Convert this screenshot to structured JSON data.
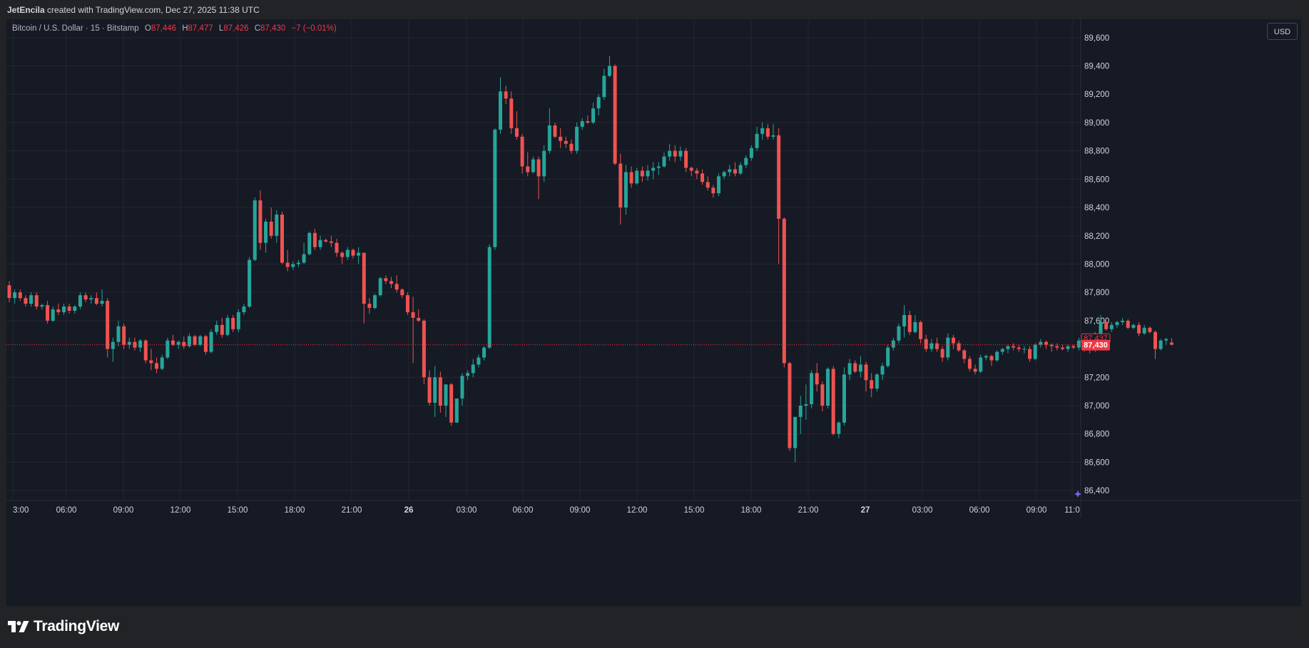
{
  "header": {
    "author": "JetEncila",
    "credit_rest": "created with TradingView.com, Dec 27, 2025 11:38 UTC"
  },
  "legend": {
    "symbol": "Bitcoin / U.S. Dollar · 15 · Bitstamp",
    "open_label": "O",
    "open": "87,446",
    "high_label": "H",
    "high": "87,477",
    "low_label": "L",
    "low": "87,426",
    "close_label": "C",
    "close": "87,430",
    "change": "−7 (−0.01%)"
  },
  "currency_button": "USD",
  "footer": {
    "brand": "TradingView",
    "logo_icon": "tradingview-logo-icon"
  },
  "colors": {
    "up": "#26a69a",
    "down": "#ef5350",
    "background": "#161a25",
    "grid": "#242733",
    "last_price_label": "#f23645"
  },
  "chart_data": {
    "type": "candlestick",
    "symbol": "BTCUSD",
    "interval": "15",
    "x_tick_labels": [
      "3:00",
      "06:00",
      "09:00",
      "12:00",
      "15:00",
      "18:00",
      "21:00",
      "26",
      "03:00",
      "06:00",
      "09:00",
      "12:00",
      "15:00",
      "18:00",
      "21:00",
      "27",
      "03:00",
      "06:00",
      "09:00",
      "11:0"
    ],
    "y_tick_labels": [
      "89,600",
      "89,400",
      "89,200",
      "89,000",
      "88,800",
      "88,600",
      "88,400",
      "88,200",
      "88,000",
      "87,800",
      "87,600",
      "87,200",
      "87,000",
      "86,800",
      "86,600",
      "86,400"
    ],
    "ylim": [
      86330,
      89730
    ],
    "price_labels": [
      "87,437",
      "87,430"
    ],
    "last_price": 87430,
    "grid": true,
    "candles": [
      [
        87850,
        87880,
        87730,
        87760
      ],
      [
        87760,
        87820,
        87720,
        87800
      ],
      [
        87800,
        87820,
        87740,
        87760
      ],
      [
        87760,
        87780,
        87700,
        87720
      ],
      [
        87720,
        87800,
        87700,
        87780
      ],
      [
        87780,
        87800,
        87680,
        87700
      ],
      [
        87700,
        87720,
        87680,
        87710
      ],
      [
        87710,
        87740,
        87580,
        87600
      ],
      [
        87600,
        87700,
        87590,
        87680
      ],
      [
        87680,
        87720,
        87640,
        87660
      ],
      [
        87660,
        87720,
        87640,
        87700
      ],
      [
        87700,
        87720,
        87650,
        87670
      ],
      [
        87670,
        87710,
        87650,
        87700
      ],
      [
        87700,
        87800,
        87680,
        87780
      ],
      [
        87780,
        87800,
        87730,
        87750
      ],
      [
        87750,
        87780,
        87720,
        87760
      ],
      [
        87760,
        87800,
        87710,
        87720
      ],
      [
        87720,
        87820,
        87700,
        87740
      ],
      [
        87740,
        87760,
        87340,
        87400
      ],
      [
        87400,
        87480,
        87310,
        87450
      ],
      [
        87450,
        87600,
        87420,
        87560
      ],
      [
        87560,
        87580,
        87400,
        87430
      ],
      [
        87430,
        87480,
        87400,
        87450
      ],
      [
        87450,
        87480,
        87390,
        87410
      ],
      [
        87410,
        87470,
        87380,
        87460
      ],
      [
        87460,
        87470,
        87300,
        87320
      ],
      [
        87320,
        87400,
        87250,
        87300
      ],
      [
        87300,
        87340,
        87230,
        87260
      ],
      [
        87260,
        87360,
        87250,
        87340
      ],
      [
        87340,
        87480,
        87330,
        87460
      ],
      [
        87460,
        87500,
        87420,
        87430
      ],
      [
        87430,
        87460,
        87400,
        87450
      ],
      [
        87450,
        87490,
        87400,
        87420
      ],
      [
        87420,
        87510,
        87410,
        87490
      ],
      [
        87490,
        87500,
        87420,
        87430
      ],
      [
        87430,
        87500,
        87420,
        87490
      ],
      [
        87490,
        87500,
        87360,
        87380
      ],
      [
        87380,
        87540,
        87370,
        87520
      ],
      [
        87520,
        87600,
        87500,
        87570
      ],
      [
        87570,
        87620,
        87480,
        87500
      ],
      [
        87500,
        87640,
        87490,
        87620
      ],
      [
        87620,
        87640,
        87520,
        87540
      ],
      [
        87540,
        87680,
        87520,
        87660
      ],
      [
        87660,
        87720,
        87640,
        87700
      ],
      [
        87700,
        88050,
        87690,
        88030
      ],
      [
        88030,
        88470,
        88020,
        88450
      ],
      [
        88450,
        88520,
        88100,
        88150
      ],
      [
        88150,
        88320,
        88080,
        88300
      ],
      [
        88300,
        88400,
        88180,
        88200
      ],
      [
        88200,
        88380,
        88150,
        88350
      ],
      [
        88350,
        88370,
        88000,
        88010
      ],
      [
        88010,
        88100,
        87950,
        87980
      ],
      [
        87980,
        88020,
        87960,
        88000
      ],
      [
        88000,
        88030,
        87980,
        88010
      ],
      [
        88010,
        88150,
        88000,
        88070
      ],
      [
        88070,
        88230,
        88060,
        88220
      ],
      [
        88220,
        88250,
        88100,
        88120
      ],
      [
        88120,
        88200,
        88100,
        88170
      ],
      [
        88170,
        88180,
        88150,
        88160
      ],
      [
        88160,
        88200,
        88120,
        88150
      ],
      [
        88150,
        88180,
        88050,
        88080
      ],
      [
        88080,
        88090,
        88000,
        88050
      ],
      [
        88050,
        88120,
        88030,
        88100
      ],
      [
        88100,
        88110,
        88040,
        88060
      ],
      [
        88060,
        88120,
        88000,
        88080
      ],
      [
        88080,
        88080,
        87580,
        87720
      ],
      [
        87720,
        87760,
        87650,
        87690
      ],
      [
        87690,
        87790,
        87680,
        87780
      ],
      [
        87780,
        87910,
        87770,
        87900
      ],
      [
        87900,
        87920,
        87860,
        87880
      ],
      [
        87880,
        87910,
        87830,
        87860
      ],
      [
        87860,
        87920,
        87800,
        87820
      ],
      [
        87820,
        87830,
        87760,
        87780
      ],
      [
        87780,
        87800,
        87640,
        87660
      ],
      [
        87660,
        87770,
        87300,
        87620
      ],
      [
        87620,
        87680,
        87590,
        87600
      ],
      [
        87600,
        87610,
        87150,
        87200
      ],
      [
        87200,
        87250,
        87000,
        87020
      ],
      [
        87020,
        87280,
        86920,
        87200
      ],
      [
        87200,
        87240,
        86950,
        87000
      ],
      [
        87000,
        87150,
        86920,
        87150
      ],
      [
        87150,
        87160,
        86860,
        86880
      ],
      [
        86880,
        87040,
        86880,
        87050
      ],
      [
        87050,
        87230,
        87000,
        87210
      ],
      [
        87210,
        87250,
        87180,
        87230
      ],
      [
        87230,
        87330,
        87200,
        87290
      ],
      [
        87290,
        87360,
        87270,
        87340
      ],
      [
        87340,
        87420,
        87320,
        87410
      ],
      [
        87410,
        88140,
        87400,
        88120
      ],
      [
        88120,
        88960,
        88100,
        88950
      ],
      [
        88950,
        89320,
        88920,
        89220
      ],
      [
        89220,
        89260,
        89130,
        89170
      ],
      [
        89170,
        89220,
        88920,
        88960
      ],
      [
        88960,
        89080,
        88880,
        88900
      ],
      [
        88900,
        88920,
        88640,
        88690
      ],
      [
        88690,
        88790,
        88620,
        88650
      ],
      [
        88650,
        88760,
        88640,
        88740
      ],
      [
        88740,
        88760,
        88460,
        88620
      ],
      [
        88620,
        88840,
        88580,
        88800
      ],
      [
        88800,
        89100,
        88780,
        88980
      ],
      [
        88980,
        89000,
        88890,
        88900
      ],
      [
        88900,
        88960,
        88820,
        88870
      ],
      [
        88870,
        88900,
        88820,
        88850
      ],
      [
        88850,
        88880,
        88780,
        88800
      ],
      [
        88800,
        89000,
        88780,
        88970
      ],
      [
        88970,
        89030,
        88950,
        89010
      ],
      [
        89010,
        89050,
        88990,
        89000
      ],
      [
        89000,
        89140,
        88990,
        89100
      ],
      [
        89100,
        89200,
        89050,
        89180
      ],
      [
        89180,
        89380,
        89160,
        89330
      ],
      [
        89330,
        89470,
        89320,
        89400
      ],
      [
        89400,
        89410,
        88700,
        88710
      ],
      [
        88710,
        88780,
        88280,
        88400
      ],
      [
        88400,
        88700,
        88350,
        88650
      ],
      [
        88650,
        88690,
        88540,
        88570
      ],
      [
        88570,
        88680,
        88560,
        88660
      ],
      [
        88660,
        88690,
        88580,
        88620
      ],
      [
        88620,
        88700,
        88590,
        88660
      ],
      [
        88660,
        88720,
        88600,
        88680
      ],
      [
        88680,
        88720,
        88630,
        88690
      ],
      [
        88690,
        88790,
        88680,
        88760
      ],
      [
        88760,
        88850,
        88730,
        88800
      ],
      [
        88800,
        88840,
        88720,
        88760
      ],
      [
        88760,
        88830,
        88730,
        88800
      ],
      [
        88800,
        88820,
        88650,
        88680
      ],
      [
        88680,
        88690,
        88620,
        88660
      ],
      [
        88660,
        88680,
        88600,
        88640
      ],
      [
        88640,
        88670,
        88560,
        88580
      ],
      [
        88580,
        88620,
        88520,
        88540
      ],
      [
        88540,
        88560,
        88470,
        88500
      ],
      [
        88500,
        88640,
        88480,
        88620
      ],
      [
        88620,
        88660,
        88600,
        88650
      ],
      [
        88650,
        88700,
        88620,
        88670
      ],
      [
        88670,
        88720,
        88620,
        88640
      ],
      [
        88640,
        88720,
        88630,
        88700
      ],
      [
        88700,
        88770,
        88680,
        88750
      ],
      [
        88750,
        88840,
        88730,
        88820
      ],
      [
        88820,
        88970,
        88800,
        88920
      ],
      [
        88920,
        89000,
        88880,
        88960
      ],
      [
        88960,
        88990,
        88880,
        88900
      ],
      [
        88900,
        88990,
        88880,
        88910
      ],
      [
        88910,
        88960,
        88000,
        88320
      ],
      [
        88320,
        88330,
        87270,
        87300
      ],
      [
        87300,
        87310,
        86680,
        86700
      ],
      [
        86700,
        86920,
        86600,
        86920
      ],
      [
        86920,
        87070,
        86800,
        87000
      ],
      [
        87000,
        87150,
        86900,
        87010
      ],
      [
        87010,
        87250,
        86980,
        87230
      ],
      [
        87230,
        87300,
        87100,
        87150
      ],
      [
        87150,
        87170,
        86960,
        87000
      ],
      [
        87000,
        87270,
        86980,
        87260
      ],
      [
        87260,
        87280,
        86790,
        86800
      ],
      [
        86800,
        86890,
        86770,
        86880
      ],
      [
        86880,
        87270,
        86860,
        87220
      ],
      [
        87220,
        87330,
        87180,
        87300
      ],
      [
        87300,
        87320,
        87230,
        87240
      ],
      [
        87240,
        87350,
        87200,
        87290
      ],
      [
        87290,
        87310,
        87100,
        87180
      ],
      [
        87180,
        87230,
        87060,
        87120
      ],
      [
        87120,
        87230,
        87100,
        87220
      ],
      [
        87220,
        87300,
        87180,
        87280
      ],
      [
        87280,
        87430,
        87270,
        87410
      ],
      [
        87410,
        87480,
        87390,
        87460
      ],
      [
        87460,
        87580,
        87440,
        87560
      ],
      [
        87560,
        87710,
        87480,
        87640
      ],
      [
        87640,
        87670,
        87500,
        87520
      ],
      [
        87520,
        87640,
        87510,
        87590
      ],
      [
        87590,
        87600,
        87440,
        87470
      ],
      [
        87470,
        87500,
        87380,
        87400
      ],
      [
        87400,
        87470,
        87380,
        87440
      ],
      [
        87440,
        87480,
        87380,
        87400
      ],
      [
        87400,
        87420,
        87310,
        87340
      ],
      [
        87340,
        87510,
        87320,
        87480
      ],
      [
        87480,
        87500,
        87400,
        87440
      ],
      [
        87440,
        87460,
        87380,
        87390
      ],
      [
        87390,
        87400,
        87300,
        87330
      ],
      [
        87330,
        87350,
        87240,
        87260
      ],
      [
        87260,
        87290,
        87220,
        87240
      ],
      [
        87240,
        87360,
        87230,
        87340
      ],
      [
        87340,
        87360,
        87320,
        87350
      ],
      [
        87350,
        87360,
        87280,
        87320
      ],
      [
        87320,
        87390,
        87310,
        87380
      ],
      [
        87380,
        87410,
        87360,
        87400
      ],
      [
        87400,
        87430,
        87370,
        87420
      ],
      [
        87420,
        87440,
        87390,
        87410
      ],
      [
        87410,
        87430,
        87380,
        87400
      ],
      [
        87400,
        87420,
        87370,
        87400
      ],
      [
        87400,
        87420,
        87310,
        87330
      ],
      [
        87330,
        87440,
        87320,
        87430
      ],
      [
        87430,
        87470,
        87410,
        87450
      ],
      [
        87450,
        87460,
        87400,
        87430
      ],
      [
        87430,
        87440,
        87380,
        87420
      ],
      [
        87420,
        87440,
        87390,
        87410
      ],
      [
        87410,
        87430,
        87390,
        87400
      ],
      [
        87400,
        87430,
        87380,
        87420
      ],
      [
        87420,
        87430,
        87400,
        87410
      ],
      [
        87410,
        87480,
        87390,
        87460
      ],
      [
        87460,
        87470,
        87380,
        87400
      ],
      [
        87400,
        87420,
        87370,
        87390
      ],
      [
        87390,
        87520,
        87380,
        87510
      ],
      [
        87510,
        87640,
        87500,
        87590
      ],
      [
        87590,
        87600,
        87530,
        87540
      ],
      [
        87540,
        87590,
        87520,
        87570
      ],
      [
        87570,
        87600,
        87550,
        87590
      ],
      [
        87590,
        87620,
        87570,
        87600
      ],
      [
        87600,
        87610,
        87540,
        87550
      ],
      [
        87550,
        87580,
        87540,
        87570
      ],
      [
        87570,
        87590,
        87490,
        87510
      ],
      [
        87510,
        87570,
        87500,
        87550
      ],
      [
        87550,
        87560,
        87510,
        87520
      ],
      [
        87520,
        87530,
        87330,
        87400
      ],
      [
        87400,
        87470,
        87390,
        87460
      ],
      [
        87460,
        87480,
        87430,
        87470
      ],
      [
        87446,
        87477,
        87426,
        87430
      ]
    ]
  }
}
